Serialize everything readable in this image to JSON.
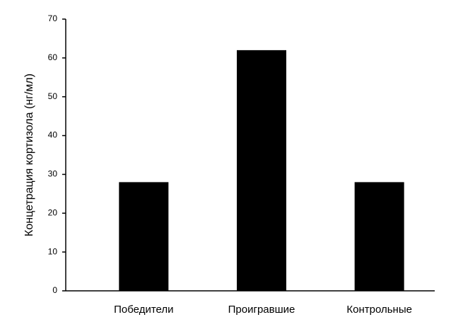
{
  "chart_data": {
    "type": "bar",
    "y_label": "Концетрация кортизола (нг/мл)",
    "categories": [
      "Победители",
      "Проигравшие",
      "Контрольные"
    ],
    "values": [
      28,
      62,
      28
    ],
    "color": "#000000",
    "ylim": [
      0,
      70
    ],
    "yticks": [
      0,
      10,
      20,
      30,
      40,
      50,
      60,
      70
    ],
    "grid": false
  }
}
